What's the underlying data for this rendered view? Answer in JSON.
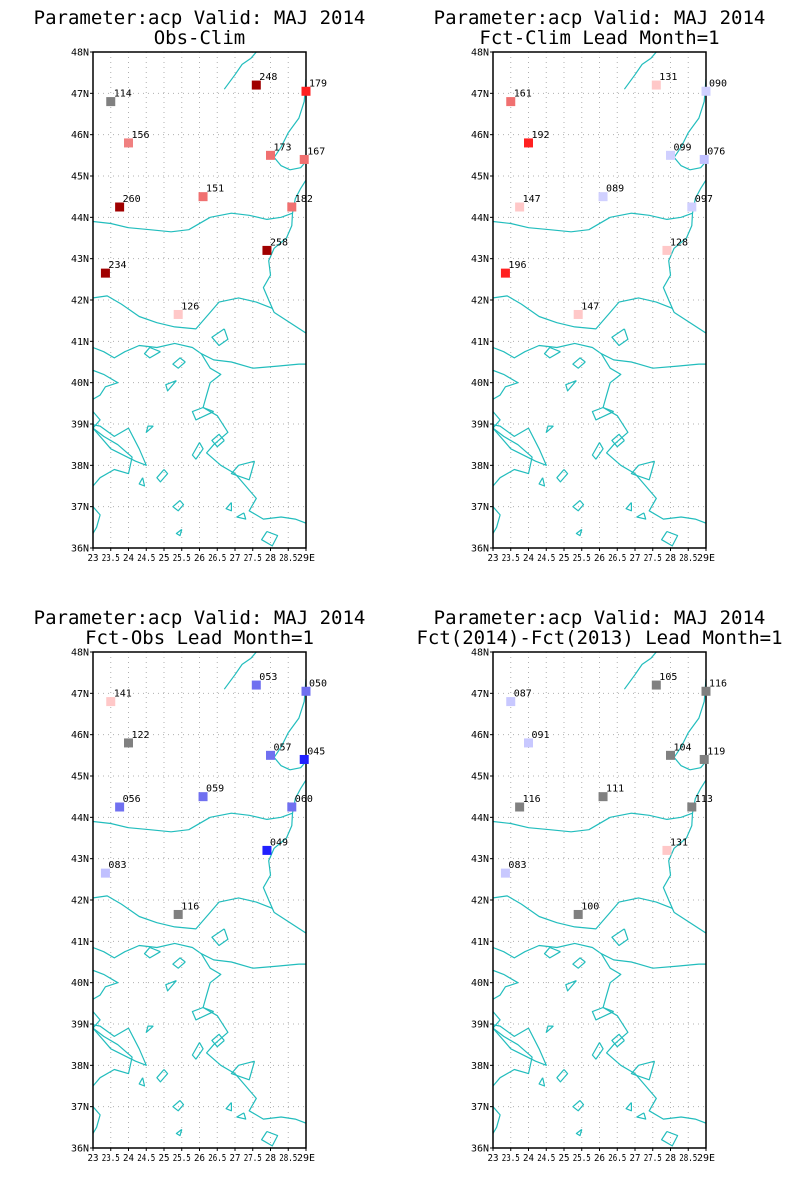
{
  "colors": {
    "coast": "#22bdbd"
  },
  "map": {
    "lon_range": [
      23,
      29
    ],
    "lat_range": [
      36,
      48
    ],
    "lon_ticks": [
      "23",
      "23.5",
      "24",
      "24.5",
      "25",
      "25.5",
      "26",
      "26.5",
      "27",
      "27.5",
      "28",
      "28.5",
      "29E"
    ],
    "lon_tick_values": [
      23,
      23.5,
      24,
      24.5,
      25,
      25.5,
      26,
      26.5,
      27,
      27.5,
      28,
      28.5,
      29
    ],
    "lat_ticks": [
      "36N",
      "37N",
      "38N",
      "39N",
      "40N",
      "41N",
      "42N",
      "43N",
      "44N",
      "45N",
      "46N",
      "47N",
      "48N"
    ],
    "lat_tick_values": [
      36,
      37,
      38,
      39,
      40,
      41,
      42,
      43,
      44,
      45,
      46,
      47,
      48
    ]
  },
  "panels": [
    {
      "title1": "Parameter:acp Valid: MAJ 2014",
      "title2": "Obs-Clim",
      "stations": [
        {
          "lon": 23.5,
          "lat": 46.8,
          "label": "114",
          "color": "#808080"
        },
        {
          "lon": 24.0,
          "lat": 45.8,
          "label": "156",
          "color": "#f08080"
        },
        {
          "lon": 27.6,
          "lat": 47.2,
          "label": "248",
          "color": "#a00000"
        },
        {
          "lon": 29.0,
          "lat": 47.05,
          "label": "179",
          "color": "#ff2020"
        },
        {
          "lon": 28.0,
          "lat": 45.5,
          "label": "173",
          "color": "#f07070"
        },
        {
          "lon": 28.95,
          "lat": 45.4,
          "label": "167",
          "color": "#f07070"
        },
        {
          "lon": 23.75,
          "lat": 44.25,
          "label": "260",
          "color": "#a00000"
        },
        {
          "lon": 26.1,
          "lat": 44.5,
          "label": "151",
          "color": "#f07070"
        },
        {
          "lon": 28.6,
          "lat": 44.25,
          "label": "182",
          "color": "#f07070"
        },
        {
          "lon": 27.9,
          "lat": 43.2,
          "label": "258",
          "color": "#a00000"
        },
        {
          "lon": 23.35,
          "lat": 42.65,
          "label": "234",
          "color": "#a00000"
        },
        {
          "lon": 25.4,
          "lat": 41.65,
          "label": "126",
          "color": "#ffc8c8"
        }
      ]
    },
    {
      "title1": "Parameter:acp Valid: MAJ 2014",
      "title2": "Fct-Clim Lead Month=1",
      "stations": [
        {
          "lon": 23.5,
          "lat": 46.8,
          "label": "161",
          "color": "#f07070"
        },
        {
          "lon": 24.0,
          "lat": 45.8,
          "label": "192",
          "color": "#ff2020"
        },
        {
          "lon": 27.6,
          "lat": 47.2,
          "label": "131",
          "color": "#ffc8c8"
        },
        {
          "lon": 29.0,
          "lat": 47.05,
          "label": "090",
          "color": "#d0d0ff"
        },
        {
          "lon": 28.0,
          "lat": 45.5,
          "label": "099",
          "color": "#d0d0ff"
        },
        {
          "lon": 28.95,
          "lat": 45.4,
          "label": "076",
          "color": "#c0c0ff"
        },
        {
          "lon": 23.75,
          "lat": 44.25,
          "label": "147",
          "color": "#ffc8c8"
        },
        {
          "lon": 26.1,
          "lat": 44.5,
          "label": "089",
          "color": "#d0d0ff"
        },
        {
          "lon": 28.6,
          "lat": 44.25,
          "label": "097",
          "color": "#d0d0ff"
        },
        {
          "lon": 27.9,
          "lat": 43.2,
          "label": "128",
          "color": "#ffc8c8"
        },
        {
          "lon": 23.35,
          "lat": 42.65,
          "label": "196",
          "color": "#ff2020"
        },
        {
          "lon": 25.4,
          "lat": 41.65,
          "label": "147",
          "color": "#ffc8c8"
        }
      ]
    },
    {
      "title1": "Parameter:acp Valid: MAJ 2014",
      "title2": "Fct-Obs Lead Month=1",
      "stations": [
        {
          "lon": 23.5,
          "lat": 46.8,
          "label": "141",
          "color": "#ffc8c8"
        },
        {
          "lon": 24.0,
          "lat": 45.8,
          "label": "122",
          "color": "#808080"
        },
        {
          "lon": 27.6,
          "lat": 47.2,
          "label": "053",
          "color": "#7070f0"
        },
        {
          "lon": 29.0,
          "lat": 47.05,
          "label": "050",
          "color": "#7070f0"
        },
        {
          "lon": 28.0,
          "lat": 45.5,
          "label": "057",
          "color": "#7070f0"
        },
        {
          "lon": 28.95,
          "lat": 45.4,
          "label": "045",
          "color": "#2020ff"
        },
        {
          "lon": 23.75,
          "lat": 44.25,
          "label": "056",
          "color": "#7070f0"
        },
        {
          "lon": 26.1,
          "lat": 44.5,
          "label": "059",
          "color": "#7070f0"
        },
        {
          "lon": 28.6,
          "lat": 44.25,
          "label": "060",
          "color": "#7070f0"
        },
        {
          "lon": 27.9,
          "lat": 43.2,
          "label": "049",
          "color": "#2020ff"
        },
        {
          "lon": 23.35,
          "lat": 42.65,
          "label": "083",
          "color": "#c0c0ff"
        },
        {
          "lon": 25.4,
          "lat": 41.65,
          "label": "116",
          "color": "#808080"
        }
      ]
    },
    {
      "title1": "Parameter:acp Valid: MAJ 2014",
      "title2": "Fct(2014)-Fct(2013) Lead Month=1",
      "stations": [
        {
          "lon": 23.5,
          "lat": 46.8,
          "label": "087",
          "color": "#c8c8ff"
        },
        {
          "lon": 24.0,
          "lat": 45.8,
          "label": "091",
          "color": "#c8c8ff"
        },
        {
          "lon": 27.6,
          "lat": 47.2,
          "label": "105",
          "color": "#808080"
        },
        {
          "lon": 29.0,
          "lat": 47.05,
          "label": "116",
          "color": "#808080"
        },
        {
          "lon": 28.0,
          "lat": 45.5,
          "label": "104",
          "color": "#808080"
        },
        {
          "lon": 28.95,
          "lat": 45.4,
          "label": "119",
          "color": "#808080"
        },
        {
          "lon": 23.75,
          "lat": 44.25,
          "label": "116",
          "color": "#808080"
        },
        {
          "lon": 26.1,
          "lat": 44.5,
          "label": "111",
          "color": "#808080"
        },
        {
          "lon": 28.6,
          "lat": 44.25,
          "label": "113",
          "color": "#808080"
        },
        {
          "lon": 27.9,
          "lat": 43.2,
          "label": "131",
          "color": "#ffc8c8"
        },
        {
          "lon": 23.35,
          "lat": 42.65,
          "label": "083",
          "color": "#c8c8ff"
        },
        {
          "lon": 25.4,
          "lat": 41.65,
          "label": "100",
          "color": "#808080"
        }
      ]
    }
  ]
}
